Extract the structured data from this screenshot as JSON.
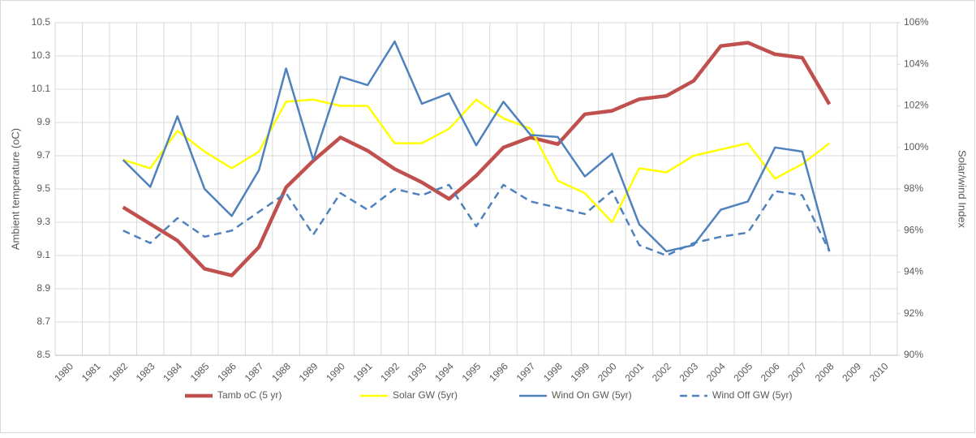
{
  "chart_data": {
    "type": "line",
    "ylabel": "Ambient temperature (oC)",
    "y2label": "Solar/wind Index",
    "categories": [
      "1980",
      "1981",
      "1982",
      "1983",
      "1984",
      "1985",
      "1986",
      "1987",
      "1988",
      "1989",
      "1990",
      "1991",
      "1992",
      "1993",
      "1994",
      "1995",
      "1996",
      "1997",
      "1998",
      "1999",
      "2000",
      "2001",
      "2002",
      "2003",
      "2004",
      "2005",
      "2006",
      "2007",
      "2008",
      "2009",
      "2010"
    ],
    "ylim": [
      8.5,
      10.5
    ],
    "yticks": [
      8.5,
      8.7,
      8.9,
      9.1,
      9.3,
      9.5,
      9.7,
      9.9,
      10.1,
      10.3,
      10.5
    ],
    "y2lim": [
      90,
      106
    ],
    "y2ticks": [
      {
        "value": 90,
        "label": "90%"
      },
      {
        "value": 92,
        "label": "92%"
      },
      {
        "value": 94,
        "label": "94%"
      },
      {
        "value": 96,
        "label": "96%"
      },
      {
        "value": 98,
        "label": "98%"
      },
      {
        "value": 100,
        "label": "100%"
      },
      {
        "value": 102,
        "label": "102%"
      },
      {
        "value": 104,
        "label": "104%"
      },
      {
        "value": 106,
        "label": "106%"
      }
    ],
    "grid": true,
    "legend": "bottom",
    "series": [
      {
        "name": "Tamb oC (5 yr)",
        "color": "#c0504d",
        "width": 4.5,
        "values": [
          null,
          null,
          9.39,
          9.29,
          9.19,
          9.02,
          8.98,
          9.15,
          9.51,
          9.67,
          9.81,
          9.73,
          9.62,
          9.54,
          9.44,
          9.58,
          9.75,
          9.81,
          9.77,
          9.95,
          9.97,
          10.04,
          10.06,
          10.15,
          10.36,
          10.38,
          10.31,
          10.29,
          10.01,
          null,
          null
        ]
      },
      {
        "name": "Solar GW (5yr)",
        "color": "#ffff00",
        "width": 2.5,
        "axis": "y2",
        "values": [
          null,
          null,
          99.4,
          99.0,
          100.8,
          99.8,
          99.0,
          99.8,
          102.2,
          102.3,
          102.0,
          102.0,
          100.2,
          100.2,
          100.9,
          102.3,
          101.4,
          100.9,
          98.4,
          97.8,
          96.4,
          99.0,
          98.8,
          99.6,
          99.9,
          100.2,
          98.5,
          99.2,
          100.2,
          null,
          null
        ]
      },
      {
        "name": "Wind On GW (5yr)",
        "color": "#4f81bd",
        "width": 2.5,
        "axis": "y2",
        "values": [
          null,
          null,
          99.4,
          98.1,
          101.5,
          98.0,
          96.7,
          98.9,
          103.8,
          99.4,
          103.4,
          103.0,
          105.1,
          102.1,
          102.6,
          100.1,
          102.2,
          100.6,
          100.5,
          98.6,
          99.7,
          96.3,
          95.0,
          95.3,
          97.0,
          97.4,
          100.0,
          99.8,
          95.0,
          null,
          null
        ]
      },
      {
        "name": "Wind Off GW (5yr)",
        "color": "#4f81bd",
        "width": 2.5,
        "axis": "y2",
        "dashed": true,
        "values": [
          null,
          null,
          96.0,
          95.4,
          96.6,
          95.7,
          96.0,
          96.9,
          97.8,
          95.8,
          97.8,
          97.0,
          98.0,
          97.7,
          98.2,
          96.2,
          98.2,
          97.4,
          97.1,
          96.8,
          97.9,
          95.3,
          94.8,
          95.4,
          95.7,
          95.9,
          97.9,
          97.7,
          95.0,
          null,
          null
        ]
      }
    ]
  }
}
